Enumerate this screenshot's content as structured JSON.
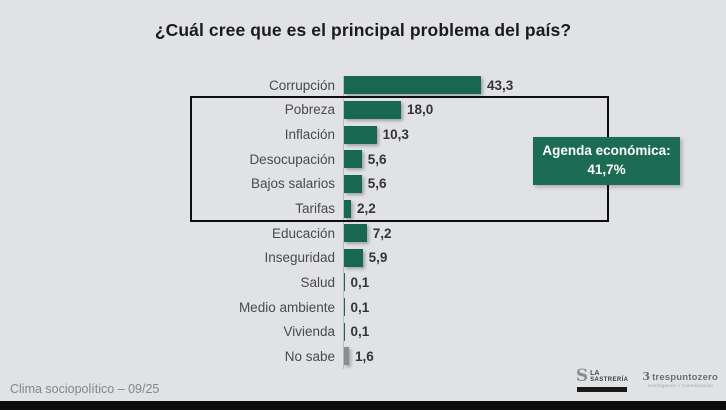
{
  "header": {
    "title": "¿Cuál cree que es el principal problema del país?"
  },
  "chart_data": {
    "type": "bar",
    "orientation": "horizontal",
    "title": "¿Cuál cree que es el principal problema del país?",
    "categories": [
      "Corrupción",
      "Pobreza",
      "Inflación",
      "Desocupación",
      "Bajos salarios",
      "Tarifas",
      "Educación",
      "Inseguridad",
      "Salud",
      "Medio ambiente",
      "Vivienda",
      "No sabe"
    ],
    "values": [
      43.3,
      18.0,
      10.3,
      5.6,
      5.6,
      2.2,
      7.2,
      5.9,
      0.1,
      0.1,
      0.1,
      1.6
    ],
    "display_values": [
      "43,3",
      "18,0",
      "10,3",
      "5,6",
      "5,6",
      "2,2",
      "7,2",
      "5,9",
      "0,1",
      "0,1",
      "0,1",
      "1,6"
    ],
    "xlim": [
      0,
      45
    ],
    "grid": false,
    "bar_color": "#186750",
    "muted_bar_color": "#8b8d8f",
    "muted_categories": [
      "No sabe"
    ],
    "annotation": {
      "label": "Agenda económica:",
      "value": "41,7%",
      "box_color": "#1c6b53",
      "grouped_categories": [
        "Pobreza",
        "Inflación",
        "Desocupación",
        "Bajos salarios",
        "Tarifas"
      ]
    }
  },
  "footer": {
    "source": "Clima sociopolítico – 09/25"
  },
  "logos": {
    "sastreria": {
      "glyph": "S",
      "line1": "LA",
      "line2": "SASTRERÍA"
    },
    "trespuntozero": {
      "glyph": "3",
      "name": "trespuntozero",
      "tagline": "Investigación + Comunicación"
    }
  }
}
